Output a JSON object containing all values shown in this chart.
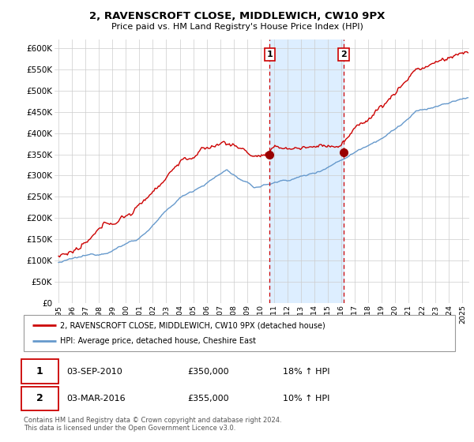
{
  "title": "2, RAVENSCROFT CLOSE, MIDDLEWICH, CW10 9PX",
  "subtitle": "Price paid vs. HM Land Registry's House Price Index (HPI)",
  "ylabel_ticks": [
    "£0",
    "£50K",
    "£100K",
    "£150K",
    "£200K",
    "£250K",
    "£300K",
    "£350K",
    "£400K",
    "£450K",
    "£500K",
    "£550K",
    "£600K"
  ],
  "ytick_values": [
    0,
    50000,
    100000,
    150000,
    200000,
    250000,
    300000,
    350000,
    400000,
    450000,
    500000,
    550000,
    600000
  ],
  "ylim": [
    0,
    620000
  ],
  "xlim_start": 1994.7,
  "xlim_end": 2025.5,
  "sale1_year": 2010.67,
  "sale1_price": 350000,
  "sale2_year": 2016.17,
  "sale2_price": 355000,
  "legend_label_red": "2, RAVENSCROFT CLOSE, MIDDLEWICH, CW10 9PX (detached house)",
  "legend_label_blue": "HPI: Average price, detached house, Cheshire East",
  "table_row1": [
    "1",
    "03-SEP-2010",
    "£350,000",
    "18% ↑ HPI"
  ],
  "table_row2": [
    "2",
    "03-MAR-2016",
    "£355,000",
    "10% ↑ HPI"
  ],
  "footer": "Contains HM Land Registry data © Crown copyright and database right 2024.\nThis data is licensed under the Open Government Licence v3.0.",
  "line_color_red": "#cc0000",
  "line_color_blue": "#6699cc",
  "plot_bg_color": "#ffffff",
  "shade_color": "#ddeeff",
  "grid_color": "#cccccc",
  "marker_dashed_color": "#cc0000",
  "sale_marker_color": "#990000"
}
